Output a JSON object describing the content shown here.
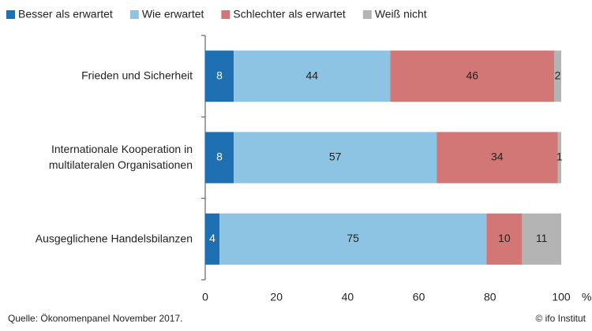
{
  "chart_data": {
    "type": "stacked_barh",
    "categories": [
      "Frieden und Sicherheit",
      "Internationale Kooperation in\nmultilateralen  Organisationen",
      "Ausgeglichene Handelsbilanzen"
    ],
    "series": [
      {
        "name": "Besser als erwartet",
        "color": "#1f70b2",
        "values": [
          8,
          8,
          4
        ]
      },
      {
        "name": "Wie erwartet",
        "color": "#8dc3e3",
        "values": [
          44,
          57,
          75
        ]
      },
      {
        "name": "Schlechter als erwartet",
        "color": "#d27776",
        "values": [
          46,
          34,
          10
        ]
      },
      {
        "name": "Weiß nicht",
        "color": "#b4b4b4",
        "values": [
          2,
          1,
          11
        ]
      }
    ],
    "xlim": [
      0,
      100
    ],
    "xticks": [
      0,
      20,
      40,
      60,
      80,
      100
    ],
    "xlabel": "%",
    "source": "Quelle: Ökonomenpanel November 2017.",
    "credit": "© ifo Institut"
  }
}
